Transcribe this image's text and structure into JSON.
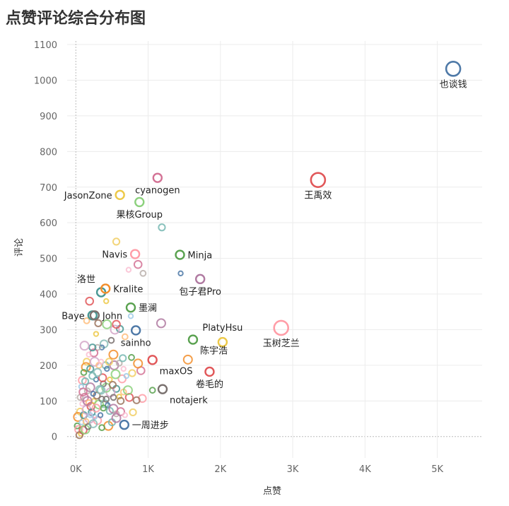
{
  "chart_data": {
    "type": "scatter",
    "title": "点赞评论综合分布图",
    "xlabel": "点赞",
    "ylabel": "评论",
    "xlim": [
      -120,
      5620
    ],
    "ylim": [
      -60,
      1110
    ],
    "x_ticks": [
      {
        "v": 0,
        "label": "0K"
      },
      {
        "v": 1000,
        "label": "1K"
      },
      {
        "v": 2000,
        "label": "2K"
      },
      {
        "v": 3000,
        "label": "3K"
      },
      {
        "v": 4000,
        "label": "4K"
      },
      {
        "v": 5000,
        "label": "5K"
      }
    ],
    "y_ticks": [
      0,
      100,
      200,
      300,
      400,
      500,
      600,
      700,
      800,
      900,
      1000,
      1100
    ],
    "grid": true,
    "labeled_points": [
      {
        "name": "也谈钱",
        "x": 5220,
        "y": 1032,
        "color": "#4e79a7",
        "big": true,
        "pos": "below"
      },
      {
        "name": "王禹效",
        "x": 3350,
        "y": 720,
        "color": "#e15759",
        "big": true,
        "pos": "below"
      },
      {
        "name": "玉树芝兰",
        "x": 2840,
        "y": 305,
        "color": "#ff9da7",
        "big": true,
        "pos": "below"
      },
      {
        "name": "PlatyHsu",
        "x": 2030,
        "y": 265,
        "color": "#edc948",
        "pos": "above"
      },
      {
        "name": "陈宇浩",
        "x": 1620,
        "y": 272,
        "color": "#59a14f",
        "pos": "belowright"
      },
      {
        "name": "卷毛的",
        "x": 1850,
        "y": 182,
        "color": "#e15759",
        "pos": "below"
      },
      {
        "name": "Minja",
        "x": 1440,
        "y": 510,
        "color": "#59a14f",
        "pos": "right"
      },
      {
        "name": "包子君Pro",
        "x": 1720,
        "y": 442,
        "color": "#b07aa1",
        "pos": "below"
      },
      {
        "name": "cyanogen",
        "x": 1130,
        "y": 726,
        "color": "#d37295",
        "pos": "below"
      },
      {
        "name": "JasonZone",
        "x": 610,
        "y": 678,
        "color": "#edc948",
        "pos": "left"
      },
      {
        "name": "果核Group",
        "x": 880,
        "y": 658,
        "color": "#8cd17d",
        "pos": "below"
      },
      {
        "name": "Navis",
        "x": 820,
        "y": 512,
        "color": "#ff9da7",
        "pos": "left"
      },
      {
        "name": "洛世",
        "x": 350,
        "y": 405,
        "color": "#499894",
        "pos": "aboveleft"
      },
      {
        "name": "Kralite",
        "x": 410,
        "y": 415,
        "color": "#f28e2b",
        "pos": "right"
      },
      {
        "name": "墨澜",
        "x": 760,
        "y": 362,
        "color": "#59a14f",
        "pos": "right"
      },
      {
        "name": "Baye",
        "x": 230,
        "y": 340,
        "color": "#499894",
        "pos": "left"
      },
      {
        "name": "John",
        "x": 260,
        "y": 340,
        "color": "#79706e",
        "pos": "right"
      },
      {
        "name": "sainho",
        "x": 830,
        "y": 298,
        "color": "#4e79a7",
        "pos": "below"
      },
      {
        "name": "maxOS",
        "x": 1060,
        "y": 215,
        "color": "#e15759",
        "pos": "belowright"
      },
      {
        "name": "notajerk",
        "x": 1200,
        "y": 133,
        "color": "#79706e",
        "pos": "belowright"
      },
      {
        "name": "一周进步",
        "x": 670,
        "y": 33,
        "color": "#4e79a7",
        "pos": "right"
      }
    ],
    "other_points": [
      [
        1450,
        458
      ],
      [
        1190,
        587
      ],
      [
        1180,
        318
      ],
      [
        930,
        458
      ],
      [
        860,
        483
      ],
      [
        730,
        468
      ],
      [
        560,
        547
      ],
      [
        1550,
        216
      ],
      [
        1060,
        130
      ],
      [
        920,
        107
      ],
      [
        760,
        338
      ],
      [
        610,
        302
      ],
      [
        540,
        300
      ],
      [
        680,
        280
      ],
      [
        560,
        315
      ],
      [
        420,
        380
      ],
      [
        310,
        318
      ],
      [
        430,
        315
      ],
      [
        490,
        270
      ],
      [
        390,
        260
      ],
      [
        360,
        250
      ],
      [
        410,
        200
      ],
      [
        530,
        200
      ],
      [
        600,
        206
      ],
      [
        900,
        185
      ],
      [
        660,
        190
      ],
      [
        780,
        178
      ],
      [
        860,
        205
      ],
      [
        770,
        222
      ],
      [
        640,
        162
      ],
      [
        700,
        170
      ],
      [
        560,
        134
      ],
      [
        480,
        124
      ],
      [
        660,
        125
      ],
      [
        740,
        110
      ],
      [
        600,
        112
      ],
      [
        840,
        102
      ],
      [
        420,
        137
      ],
      [
        380,
        148
      ],
      [
        330,
        132
      ],
      [
        280,
        160
      ],
      [
        230,
        170
      ],
      [
        200,
        138
      ],
      [
        160,
        128
      ],
      [
        120,
        110
      ],
      [
        90,
        92
      ],
      [
        60,
        70
      ],
      [
        30,
        55
      ],
      [
        20,
        30
      ],
      [
        40,
        20
      ],
      [
        80,
        40
      ],
      [
        110,
        60
      ],
      [
        150,
        75
      ],
      [
        180,
        95
      ],
      [
        210,
        85
      ],
      [
        250,
        100
      ],
      [
        290,
        115
      ],
      [
        320,
        90
      ],
      [
        360,
        105
      ],
      [
        400,
        92
      ],
      [
        440,
        88
      ],
      [
        470,
        72
      ],
      [
        520,
        78
      ],
      [
        560,
        64
      ],
      [
        620,
        70
      ],
      [
        680,
        60
      ],
      [
        790,
        68
      ],
      [
        450,
        30
      ],
      [
        360,
        25
      ],
      [
        300,
        45
      ],
      [
        260,
        55
      ],
      [
        220,
        68
      ],
      [
        190,
        50
      ],
      [
        140,
        42
      ],
      [
        100,
        18
      ],
      [
        70,
        8
      ],
      [
        50,
        4
      ],
      [
        130,
        20
      ],
      [
        170,
        28
      ],
      [
        240,
        36
      ],
      [
        340,
        60
      ],
      [
        500,
        40
      ],
      [
        560,
        52
      ],
      [
        300,
        250
      ],
      [
        250,
        235
      ],
      [
        180,
        230
      ],
      [
        150,
        210
      ],
      [
        140,
        195
      ],
      [
        110,
        180
      ],
      [
        90,
        158
      ],
      [
        75,
        140
      ],
      [
        200,
        190
      ],
      [
        260,
        210
      ],
      [
        320,
        200
      ],
      [
        370,
        165
      ],
      [
        470,
        160
      ],
      [
        510,
        145
      ],
      [
        550,
        175
      ],
      [
        420,
        105
      ],
      [
        300,
        180
      ],
      [
        240,
        120
      ],
      [
        130,
        155
      ],
      [
        160,
        100
      ],
      [
        60,
        110
      ],
      [
        100,
        125
      ],
      [
        350,
        210
      ],
      [
        460,
        210
      ],
      [
        520,
        230
      ],
      [
        380,
        80
      ],
      [
        280,
        80
      ],
      [
        200,
        60
      ],
      [
        230,
        250
      ],
      [
        120,
        255
      ],
      [
        150,
        325
      ],
      [
        190,
        380
      ],
      [
        280,
        288
      ],
      [
        620,
        100
      ],
      [
        720,
        130
      ],
      [
        520,
        110
      ],
      [
        350,
        130
      ],
      [
        430,
        190
      ],
      [
        650,
        220
      ]
    ]
  },
  "palette": [
    "#4e79a7",
    "#f28e2b",
    "#e15759",
    "#76b7b2",
    "#59a14f",
    "#edc948",
    "#b07aa1",
    "#ff9da7",
    "#9c755f",
    "#bab0ac",
    "#a0cbe8",
    "#8cd17d",
    "#d37295",
    "#499894",
    "#79706e",
    "#fabfd2",
    "#d4a6c8",
    "#86bcb6",
    "#f1ce63",
    "#ffbe7d"
  ]
}
